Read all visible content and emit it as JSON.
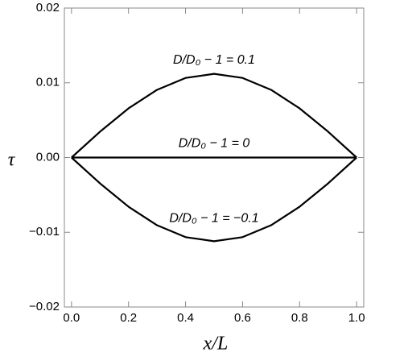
{
  "chart_data": {
    "type": "line",
    "xlabel": "x/L",
    "ylabel": "τ",
    "x": [
      0,
      0.1,
      0.2,
      0.3,
      0.4,
      0.5,
      0.6,
      0.7,
      0.8,
      0.9,
      1.0
    ],
    "series": [
      {
        "name": "D/D₀ − 1 = 0.1",
        "color": "#000000",
        "values": [
          0,
          0.00346,
          0.00658,
          0.00906,
          0.01065,
          0.0112,
          0.01065,
          0.00906,
          0.00658,
          0.00346,
          0
        ]
      },
      {
        "name": "D/D₀ − 1 = 0",
        "color": "#000000",
        "values": [
          0,
          0,
          0,
          0,
          0,
          0,
          0,
          0,
          0,
          0,
          0
        ]
      },
      {
        "name": "D/D₀ − 1 = −0.1",
        "color": "#000000",
        "values": [
          0,
          -0.00346,
          -0.00658,
          -0.00906,
          -0.01065,
          -0.0112,
          -0.01065,
          -0.00906,
          -0.00658,
          -0.00346,
          0
        ]
      }
    ],
    "xlim": [
      -0.025,
      1.025
    ],
    "ylim": [
      -0.02,
      0.02
    ],
    "xticks": [
      {
        "value": 0,
        "label": "0.0"
      },
      0.2,
      0.4,
      0.6,
      0.8,
      {
        "value": 1,
        "label": "1.0"
      }
    ],
    "yticks": [
      {
        "value": -0.02,
        "label": "−0.02"
      },
      {
        "value": -0.01,
        "label": "−0.01"
      },
      {
        "value": 0,
        "label": "0.00"
      },
      0.01,
      0.02
    ]
  }
}
